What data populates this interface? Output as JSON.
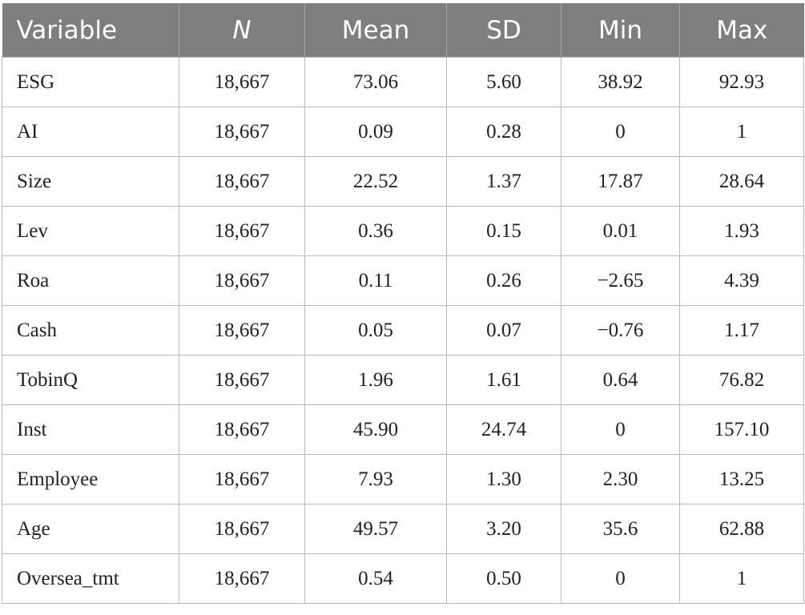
{
  "table": {
    "header": [
      "Variable",
      "N",
      "Mean",
      "SD",
      "Min",
      "Max"
    ],
    "rows": [
      [
        "ESG",
        "18,667",
        "73.06",
        "5.60",
        "38.92",
        "92.93"
      ],
      [
        "AI",
        "18,667",
        "0.09",
        "0.28",
        "0",
        "1"
      ],
      [
        "Size",
        "18,667",
        "22.52",
        "1.37",
        "17.87",
        "28.64"
      ],
      [
        "Lev",
        "18,667",
        "0.36",
        "0.15",
        "0.01",
        "1.93"
      ],
      [
        "Roa",
        "18,667",
        "0.11",
        "0.26",
        "−2.65",
        "4.39"
      ],
      [
        "Cash",
        "18,667",
        "0.05",
        "0.07",
        "−0.76",
        "1.17"
      ],
      [
        "TobinQ",
        "18,667",
        "1.96",
        "1.61",
        "0.64",
        "76.82"
      ],
      [
        "Inst",
        "18,667",
        "45.90",
        "24.74",
        "0",
        "157.10"
      ],
      [
        "Employee",
        "18,667",
        "7.93",
        "1.30",
        "2.30",
        "13.25"
      ],
      [
        "Age",
        "18,667",
        "49.57",
        "3.20",
        "35.6",
        "62.88"
      ],
      [
        "Oversea_tmt",
        "18,667",
        "0.54",
        "0.50",
        "0",
        "1"
      ]
    ]
  }
}
